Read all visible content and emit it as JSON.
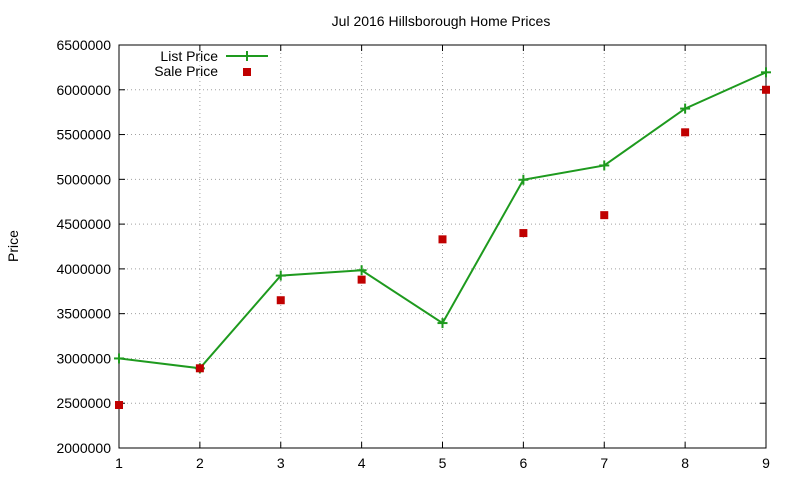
{
  "chart_data": {
    "type": "line",
    "title": "Jul 2016 Hillsborough Home Prices",
    "xlabel": "",
    "ylabel": "Price",
    "x": [
      1,
      2,
      3,
      4,
      5,
      6,
      7,
      8,
      9
    ],
    "xlim": [
      1,
      9
    ],
    "ylim": [
      2000000,
      6500000
    ],
    "y_ticks": [
      2000000,
      2500000,
      3000000,
      3500000,
      4000000,
      4500000,
      5000000,
      5500000,
      6000000,
      6500000
    ],
    "x_ticks": [
      1,
      2,
      3,
      4,
      5,
      6,
      7,
      8,
      9
    ],
    "grid": true,
    "legend_position": "top-left",
    "series": [
      {
        "name": "List Price",
        "style": "line-with-plus-markers",
        "color": "#1e9a1e",
        "values": [
          3000000,
          2890000,
          3925000,
          3985000,
          3395000,
          4995000,
          5155000,
          5790000,
          6195000
        ]
      },
      {
        "name": "Sale Price",
        "style": "square-markers",
        "color": "#c00000",
        "values": [
          2480000,
          2890000,
          3650000,
          3880000,
          4330000,
          4400000,
          4600000,
          5525000,
          6000000
        ]
      }
    ]
  }
}
